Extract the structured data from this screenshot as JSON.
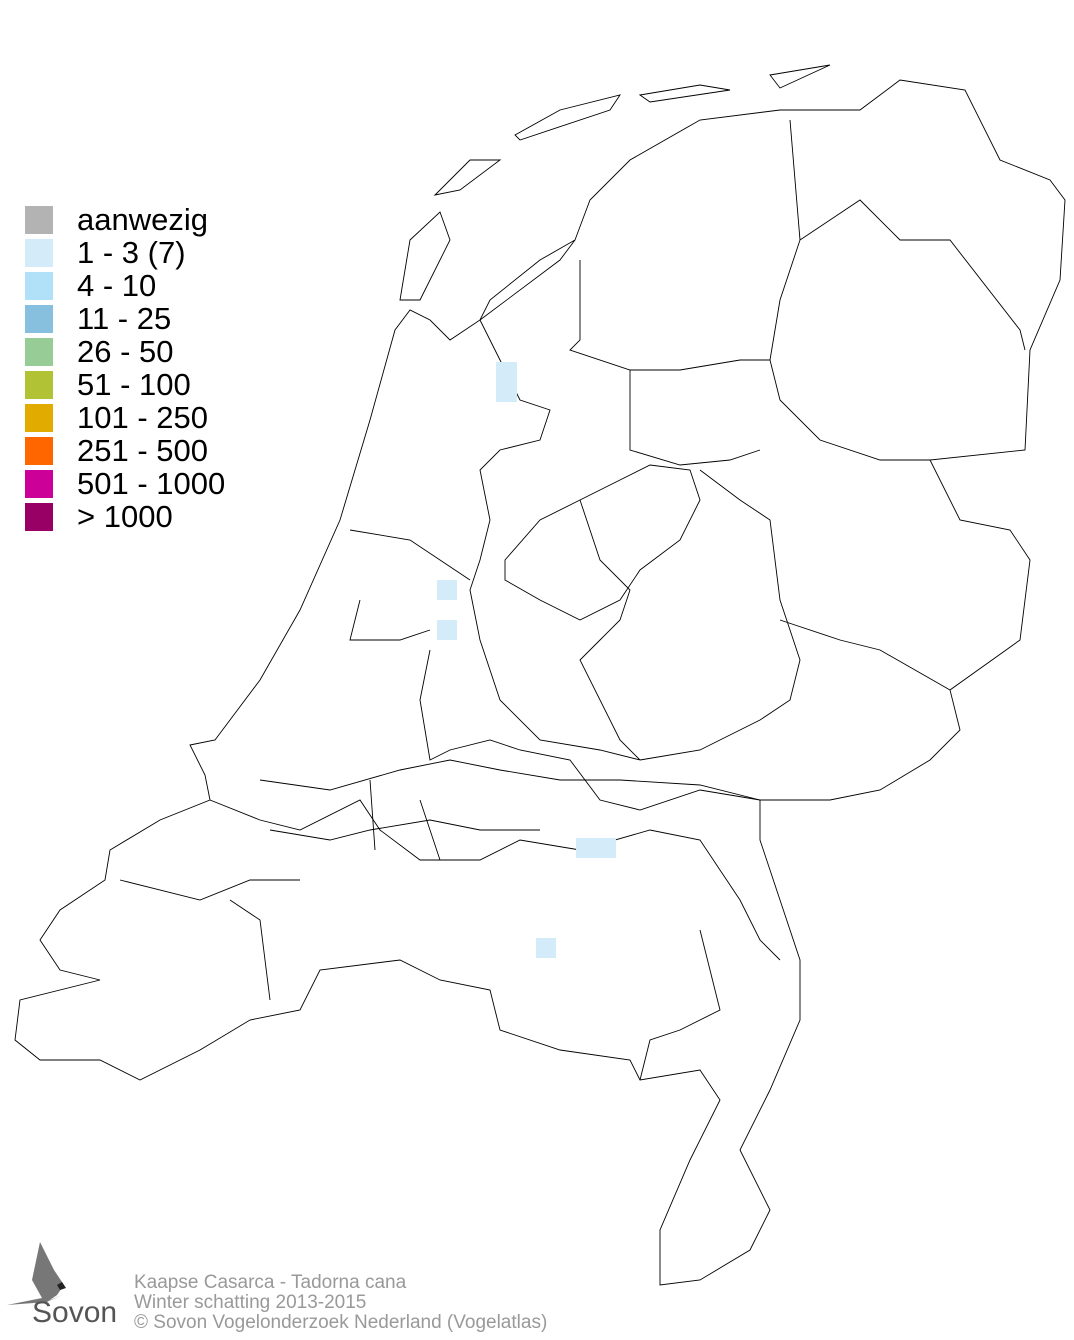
{
  "legend": {
    "items": [
      {
        "label": "aanwezig",
        "color": "#b3b3b3"
      },
      {
        "label": "1 - 3 (7)",
        "color": "#d4ecfa"
      },
      {
        "label": "4 - 10",
        "color": "#b0e1f9"
      },
      {
        "label": "11 - 25",
        "color": "#86c0de"
      },
      {
        "label": "26 - 50",
        "color": "#98cc96"
      },
      {
        "label": "51 - 100",
        "color": "#b1c235"
      },
      {
        "label": "101 - 250",
        "color": "#e1ab00"
      },
      {
        "label": "251 - 500",
        "color": "#ff6600"
      },
      {
        "label": "501 - 1000",
        "color": "#cc0099"
      },
      {
        "label": "> 1000",
        "color": "#990066"
      }
    ]
  },
  "map": {
    "occupied_cell_class": "1 - 3 (7)",
    "cell_color": "#d4ecfa"
  },
  "footer": {
    "species": "Kaapse Casarca - Tadorna cana",
    "season": "Winter schatting 2013-2015",
    "copyright": "© Sovon Vogelonderzoek Nederland (Vogelatlas)"
  },
  "logo": {
    "text": "Sovon"
  }
}
